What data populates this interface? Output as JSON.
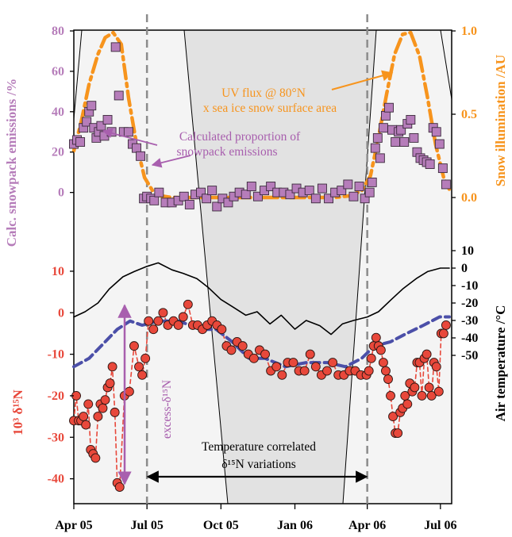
{
  "chart_data": {
    "type": "line",
    "x_tick_labels": [
      "Apr 05",
      "Jul 05",
      "Oct 05",
      "Jan 06",
      "Apr 06",
      "Jul 06"
    ],
    "x_tick_dates": [
      "2005-04-01",
      "2005-07-01",
      "2005-10-01",
      "2006-01-01",
      "2006-04-01",
      "2006-07-01"
    ],
    "x_range": [
      "2005-04-01",
      "2006-07-15"
    ],
    "grid": false,
    "dashed_markers": [
      "2005-07-01",
      "2006-04-01"
    ],
    "panels": [
      {
        "id": "snowpack",
        "ylabel_left": "Calc. snowpack emissions /%",
        "ylabel_right": "Snow illumination /AU",
        "y_left": {
          "ticks": [
            "80",
            "60",
            "40",
            "20",
            "0"
          ],
          "range": [
            -8,
            80
          ]
        },
        "y_right": {
          "ticks": [
            "1.0",
            "0.5",
            "0.0"
          ],
          "range": [
            -0.1,
            1.0
          ]
        },
        "series": [
          {
            "axis": "left",
            "marker": "square",
            "color": "#B67DBA",
            "x": [
              "2005-04-01",
              "2005-04-05",
              "2005-04-09",
              "2005-04-13",
              "2005-04-17",
              "2005-04-20",
              "2005-04-23",
              "2005-04-26",
              "2005-04-29",
              "2005-05-02",
              "2005-05-05",
              "2005-05-09",
              "2005-05-13",
              "2005-05-18",
              "2005-05-23",
              "2005-05-27",
              "2005-06-02",
              "2005-06-08",
              "2005-06-13",
              "2005-06-18",
              "2005-06-23",
              "2005-06-27",
              "2005-07-01",
              "2005-07-06",
              "2005-07-10",
              "2005-07-16",
              "2005-07-24",
              "2005-08-01",
              "2005-08-09",
              "2005-08-16",
              "2005-08-23",
              "2005-08-30",
              "2005-09-06",
              "2005-09-13",
              "2005-09-20",
              "2005-09-26",
              "2005-10-03",
              "2005-10-10",
              "2005-10-17",
              "2005-10-24",
              "2005-11-01",
              "2005-11-08",
              "2005-11-16",
              "2005-11-24",
              "2005-12-02",
              "2005-12-10",
              "2005-12-18",
              "2005-12-26",
              "2006-01-03",
              "2006-01-11",
              "2006-01-19",
              "2006-01-27",
              "2006-02-04",
              "2006-02-12",
              "2006-02-20",
              "2006-02-28",
              "2006-03-08",
              "2006-03-15",
              "2006-03-22",
              "2006-03-29",
              "2006-04-04",
              "2006-04-07",
              "2006-04-11",
              "2006-04-14",
              "2006-04-17",
              "2006-04-21",
              "2006-04-24",
              "2006-04-28",
              "2006-05-02",
              "2006-05-06",
              "2006-05-10",
              "2006-05-13",
              "2006-05-17",
              "2006-05-21",
              "2006-05-25",
              "2006-05-29",
              "2006-06-02",
              "2006-06-06",
              "2006-06-10",
              "2006-06-14",
              "2006-06-18",
              "2006-06-22",
              "2006-06-26",
              "2006-06-30",
              "2006-07-04",
              "2006-07-08"
            ],
            "y": [
              24,
              26,
              25,
              32,
              35,
              40,
              43,
              32,
              27,
              30,
              33,
              28,
              36,
              30,
              72,
              48,
              30,
              30,
              24,
              22,
              18,
              -3,
              -2,
              -3,
              -4,
              0,
              -5,
              -5,
              -4,
              -2,
              -6,
              -1,
              0,
              -3,
              1,
              -7,
              -3,
              -5,
              -2,
              0,
              -1,
              3,
              -2,
              1,
              3,
              0,
              0,
              -1,
              2,
              0,
              1,
              -3,
              2,
              -3,
              0,
              1,
              4,
              -2,
              3,
              -3,
              0,
              5,
              22,
              27,
              17,
              32,
              38,
              42,
              31,
              25,
              30,
              31,
              25,
              34,
              36,
              27,
              20,
              17,
              16,
              15,
              14,
              32,
              30,
              24,
              12,
              4
            ]
          },
          {
            "axis": "right",
            "style": "dash-dot",
            "color": "#F7941D",
            "x": [
              "2005-04-01",
              "2005-04-10",
              "2005-04-20",
              "2005-05-01",
              "2005-05-10",
              "2005-05-20",
              "2005-05-30",
              "2005-06-08",
              "2005-06-18",
              "2005-06-28",
              "2005-07-08",
              "2005-07-18",
              "2005-08-01",
              "2006-02-20",
              "2006-03-10",
              "2006-03-25",
              "2006-04-05",
              "2006-04-15",
              "2006-04-25",
              "2006-05-05",
              "2006-05-15",
              "2006-05-25",
              "2006-06-05",
              "2006-06-15",
              "2006-06-25",
              "2006-07-05",
              "2006-07-12"
            ],
            "y": [
              0.28,
              0.45,
              0.68,
              0.86,
              0.96,
              0.99,
              0.92,
              0.6,
              0.32,
              0.12,
              0.04,
              0.01,
              0.0,
              0.0,
              0.01,
              0.04,
              0.13,
              0.36,
              0.62,
              0.86,
              0.98,
              0.99,
              0.85,
              0.6,
              0.32,
              0.12,
              0.05
            ]
          }
        ]
      },
      {
        "id": "nitrate",
        "ylabel_left": "10³ δ¹⁵N",
        "ylabel_right": "Air temperature /°C",
        "y_left": {
          "ticks": [
            "10",
            "0",
            "-10",
            "-20",
            "-30",
            "-40"
          ],
          "range": [
            -46,
            14
          ]
        },
        "y_right": {
          "ticks": [
            "10",
            "0",
            "-10",
            "-20",
            "-30",
            "-40",
            "-50"
          ],
          "range": [
            -60,
            20
          ]
        },
        "series": [
          {
            "axis": "left",
            "marker": "circle",
            "style": "dashed",
            "color": "#E8483B",
            "x": [
              "2005-04-01",
              "2005-04-04",
              "2005-04-07",
              "2005-04-10",
              "2005-04-13",
              "2005-04-16",
              "2005-04-19",
              "2005-04-22",
              "2005-04-25",
              "2005-04-28",
              "2005-05-01",
              "2005-05-04",
              "2005-05-07",
              "2005-05-10",
              "2005-05-13",
              "2005-05-16",
              "2005-05-19",
              "2005-05-22",
              "2005-05-25",
              "2005-05-28",
              "2005-06-03",
              "2005-06-09",
              "2005-06-15",
              "2005-06-21",
              "2005-06-25",
              "2005-06-29",
              "2005-07-03",
              "2005-07-09",
              "2005-07-15",
              "2005-07-21",
              "2005-07-27",
              "2005-08-03",
              "2005-08-09",
              "2005-08-15",
              "2005-08-21",
              "2005-08-27",
              "2005-09-02",
              "2005-09-08",
              "2005-09-14",
              "2005-09-20",
              "2005-09-26",
              "2005-10-02",
              "2005-10-08",
              "2005-10-14",
              "2005-10-21",
              "2005-10-28",
              "2005-11-04",
              "2005-11-11",
              "2005-11-18",
              "2005-11-25",
              "2005-12-02",
              "2005-12-09",
              "2005-12-16",
              "2005-12-23",
              "2005-12-30",
              "2006-01-06",
              "2006-01-13",
              "2006-01-20",
              "2006-01-27",
              "2006-02-03",
              "2006-02-10",
              "2006-02-17",
              "2006-02-24",
              "2006-03-03",
              "2006-03-10",
              "2006-03-17",
              "2006-03-24",
              "2006-03-31",
              "2006-04-03",
              "2006-04-06",
              "2006-04-09",
              "2006-04-12",
              "2006-04-15",
              "2006-04-18",
              "2006-04-21",
              "2006-04-24",
              "2006-04-27",
              "2006-04-30",
              "2006-05-03",
              "2006-05-06",
              "2006-05-09",
              "2006-05-12",
              "2006-05-15",
              "2006-05-18",
              "2006-05-21",
              "2006-05-24",
              "2006-05-27",
              "2006-05-30",
              "2006-06-02",
              "2006-06-05",
              "2006-06-08",
              "2006-06-11",
              "2006-06-14",
              "2006-06-17",
              "2006-06-20",
              "2006-06-23",
              "2006-06-26",
              "2006-06-29",
              "2006-07-02",
              "2006-07-05",
              "2006-07-08"
            ],
            "y": [
              -26,
              -20,
              -26,
              -26,
              -25,
              -27,
              -22,
              -33,
              -34,
              -35,
              -25,
              -22,
              -23,
              -21,
              -18,
              -17,
              -13,
              -24,
              -41,
              -42,
              -20,
              -19,
              -8,
              -13,
              -15,
              -11,
              -2,
              -4,
              -2,
              0,
              -3,
              -2,
              -3,
              -1,
              2,
              -3,
              -3,
              -4,
              -3,
              -2,
              -3,
              -4,
              -8,
              -9,
              -7,
              -8,
              -10,
              -11,
              -9,
              -10,
              -14,
              -13,
              -15,
              -12,
              -12,
              -14,
              -14,
              -10,
              -13,
              -15,
              -14,
              -12,
              -15,
              -15,
              -14,
              -14,
              -15,
              -15,
              -14,
              -11,
              -8,
              -6,
              -8,
              -9,
              -12,
              -14,
              -16,
              -20,
              -25,
              -29,
              -29,
              -24,
              -23,
              -20,
              -22,
              -17,
              -19,
              -18,
              -12,
              -12,
              -20,
              -11,
              -10,
              -18,
              -20,
              -12,
              -13,
              -19,
              -5,
              -5,
              -3
            ],
            "annotation": "excess-δ¹⁵N"
          },
          {
            "axis": "left",
            "style": "dashed",
            "color": "#4B4FA8",
            "x": [
              "2005-04-01",
              "2005-04-20",
              "2005-05-10",
              "2005-05-25",
              "2005-06-10",
              "2005-06-25",
              "2005-07-15",
              "2005-08-10",
              "2005-09-05",
              "2005-09-25",
              "2005-10-15",
              "2005-11-05",
              "2005-11-25",
              "2005-12-20",
              "2006-01-15",
              "2006-02-10",
              "2006-03-05",
              "2006-03-25",
              "2006-04-10",
              "2006-04-30",
              "2006-05-20",
              "2006-06-10",
              "2006-06-30",
              "2006-07-12"
            ],
            "y": [
              -13,
              -11,
              -7,
              -4,
              -2,
              -3,
              -2,
              -2,
              -4,
              -4,
              -7,
              -11,
              -11,
              -13,
              -12,
              -12,
              -13,
              -11,
              -8,
              -7,
              -5,
              -3,
              -1,
              -1
            ]
          },
          {
            "axis": "right",
            "style": "solid",
            "color": "#000000",
            "name": "Air temperature",
            "x": [
              "2005-04-01",
              "2005-04-15",
              "2005-05-01",
              "2005-05-15",
              "2005-06-01",
              "2005-06-15",
              "2005-07-01",
              "2005-07-15",
              "2005-08-01",
              "2005-08-15",
              "2005-09-01",
              "2005-09-15",
              "2005-10-01",
              "2005-10-15",
              "2005-11-01",
              "2005-11-15",
              "2005-12-01",
              "2005-12-15",
              "2006-01-01",
              "2006-01-15",
              "2006-02-01",
              "2006-02-15",
              "2006-03-01",
              "2006-03-15",
              "2006-04-01",
              "2006-04-15",
              "2006-05-01",
              "2006-05-15",
              "2006-06-01",
              "2006-06-15",
              "2006-07-01",
              "2006-07-12"
            ],
            "y": [
              -28,
              -25,
              -20,
              -12,
              -5,
              -2,
              1,
              3,
              -1,
              -3,
              -6,
              -11,
              -18,
              -22,
              -27,
              -25,
              -32,
              -27,
              -35,
              -30,
              -33,
              -38,
              -32,
              -30,
              -28,
              -25,
              -18,
              -12,
              -6,
              -2,
              0,
              0
            ]
          }
        ]
      }
    ],
    "annotations": {
      "uv_line1": "UV flux @ 80°N",
      "uv_line2": "x sea ice snow surface area",
      "calc_line1": "Calculated proportion of",
      "calc_line2": "snowpack emissions",
      "excess": "excess-δ¹⁵N",
      "temp_line1": "Temperature correlated",
      "temp_line2": "δ¹⁵N variations"
    },
    "colors": {
      "purple": "#B67DBA",
      "purple_text": "#A85FAE",
      "orange": "#F7941D",
      "red": "#E8483B",
      "blue": "#4B4FA8",
      "black": "#000000",
      "gray_dashed": "#8C8C8C",
      "bg_light": "#F4F4F4",
      "bg_shade": "#E2E2E2"
    }
  }
}
